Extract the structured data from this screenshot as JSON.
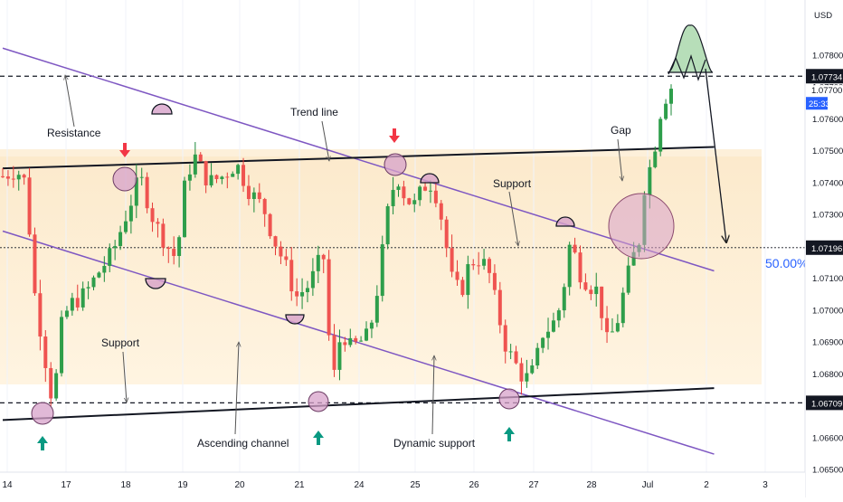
{
  "currency_label": "USD",
  "countdown": "25:33",
  "chart_data": {
    "type": "candlestick",
    "title": "",
    "xlabel": "",
    "ylabel": "",
    "ylim": [
      1.06495,
      1.08185
    ],
    "y_ticks": [
      "1.07800",
      "1.07700",
      "1.07600",
      "1.07500",
      "1.07400",
      "1.07300",
      "1.07100",
      "1.07000",
      "1.06900",
      "1.06800",
      "1.06600",
      "1.06500"
    ],
    "y_tick_values": [
      1.078,
      1.077,
      1.076,
      1.075,
      1.074,
      1.073,
      1.071,
      1.07,
      1.069,
      1.068,
      1.066,
      1.065
    ],
    "x_ticks": [
      "14",
      "17",
      "18",
      "19",
      "20",
      "21",
      "24",
      "25",
      "26",
      "27",
      "28",
      "Jul",
      "2",
      "3"
    ],
    "price_labels": [
      {
        "text": "1.07734",
        "value": 1.07734,
        "style": "dark"
      },
      {
        "text": "1.07700",
        "value": 1.077,
        "style": "dark"
      },
      {
        "text": "1.07196",
        "value": 1.07196,
        "style": "dark"
      },
      {
        "text": "1.06709",
        "value": 1.06709,
        "style": "dark"
      }
    ],
    "current_price": {
      "text": "1.07700",
      "value": 1.077
    },
    "fib_label": "50.00%",
    "levels": {
      "resistance": 1.07734,
      "mid": 1.07196,
      "support": 1.06709
    },
    "annotations": [
      "Resistance",
      "Trend line",
      "Support",
      "Support",
      "Gap",
      "Ascending channel",
      "Dynamic support"
    ],
    "channel_upper": {
      "start": [
        0,
        1.07445
      ],
      "end": [
        143,
        1.07512
      ]
    },
    "channel_lower": {
      "start": [
        0,
        1.06655
      ],
      "end": [
        143,
        1.06755
      ]
    },
    "dynamic_upper": {
      "start": [
        0,
        1.07822
      ],
      "end": [
        143,
        1.07123
      ]
    },
    "dynamic_lower": {
      "start": [
        0,
        1.07248
      ],
      "end": [
        143,
        1.06548
      ]
    },
    "candles_count": 126,
    "anchors": [
      [
        0,
        1.0742
      ],
      [
        3,
        1.0744
      ],
      [
        5,
        1.074
      ],
      [
        7,
        1.0705
      ],
      [
        9,
        1.0687
      ],
      [
        11,
        1.067
      ],
      [
        13,
        1.0697
      ],
      [
        15,
        1.0702
      ],
      [
        18,
        1.0705
      ],
      [
        21,
        1.0712
      ],
      [
        24,
        1.0718
      ],
      [
        27,
        1.073
      ],
      [
        30,
        1.0742
      ],
      [
        33,
        1.0728
      ],
      [
        36,
        1.072
      ],
      [
        38,
        1.0716
      ],
      [
        40,
        1.0742
      ],
      [
        42,
        1.0748
      ],
      [
        45,
        1.074
      ],
      [
        48,
        1.0742
      ],
      [
        51,
        1.0746
      ],
      [
        54,
        1.0737
      ],
      [
        57,
        1.0732
      ],
      [
        59,
        1.0723
      ],
      [
        62,
        1.0713
      ],
      [
        64,
        1.0704
      ],
      [
        67,
        1.0708
      ],
      [
        70,
        1.0718
      ],
      [
        72,
        1.0676
      ],
      [
        74,
        1.0694
      ],
      [
        76,
        1.0688
      ],
      [
        78,
        1.069
      ],
      [
        80,
        1.0692
      ],
      [
        82,
        1.0708
      ],
      [
        84,
        1.073
      ],
      [
        86,
        1.0743
      ],
      [
        88,
        1.0735
      ],
      [
        90,
        1.0733
      ],
      [
        92,
        1.0739
      ],
      [
        94,
        1.074
      ],
      [
        96,
        1.0728
      ],
      [
        98,
        1.071
      ],
      [
        100,
        1.0705
      ],
      [
        102,
        1.0715
      ],
      [
        104,
        1.0716
      ],
      [
        106,
        1.0713
      ],
      [
        108,
        1.07
      ],
      [
        110,
        1.0688
      ],
      [
        112,
        1.0683
      ],
      [
        114,
        1.0678
      ],
      [
        116,
        1.0681
      ],
      [
        118,
        1.0693
      ],
      [
        120,
        1.0695
      ],
      [
        122,
        1.0702
      ],
      [
        124,
        1.0722
      ],
      [
        126,
        1.0712
      ],
      [
        128,
        1.0708
      ],
      [
        130,
        1.0706
      ],
      [
        132,
        1.069
      ],
      [
        134,
        1.0695
      ],
      [
        136,
        1.0708
      ],
      [
        138,
        1.0718
      ],
      [
        139,
        1.0722
      ],
      [
        140,
        1.0738
      ],
      [
        142,
        1.0748
      ],
      [
        144,
        1.0765
      ],
      [
        146,
        1.077
      ]
    ]
  }
}
